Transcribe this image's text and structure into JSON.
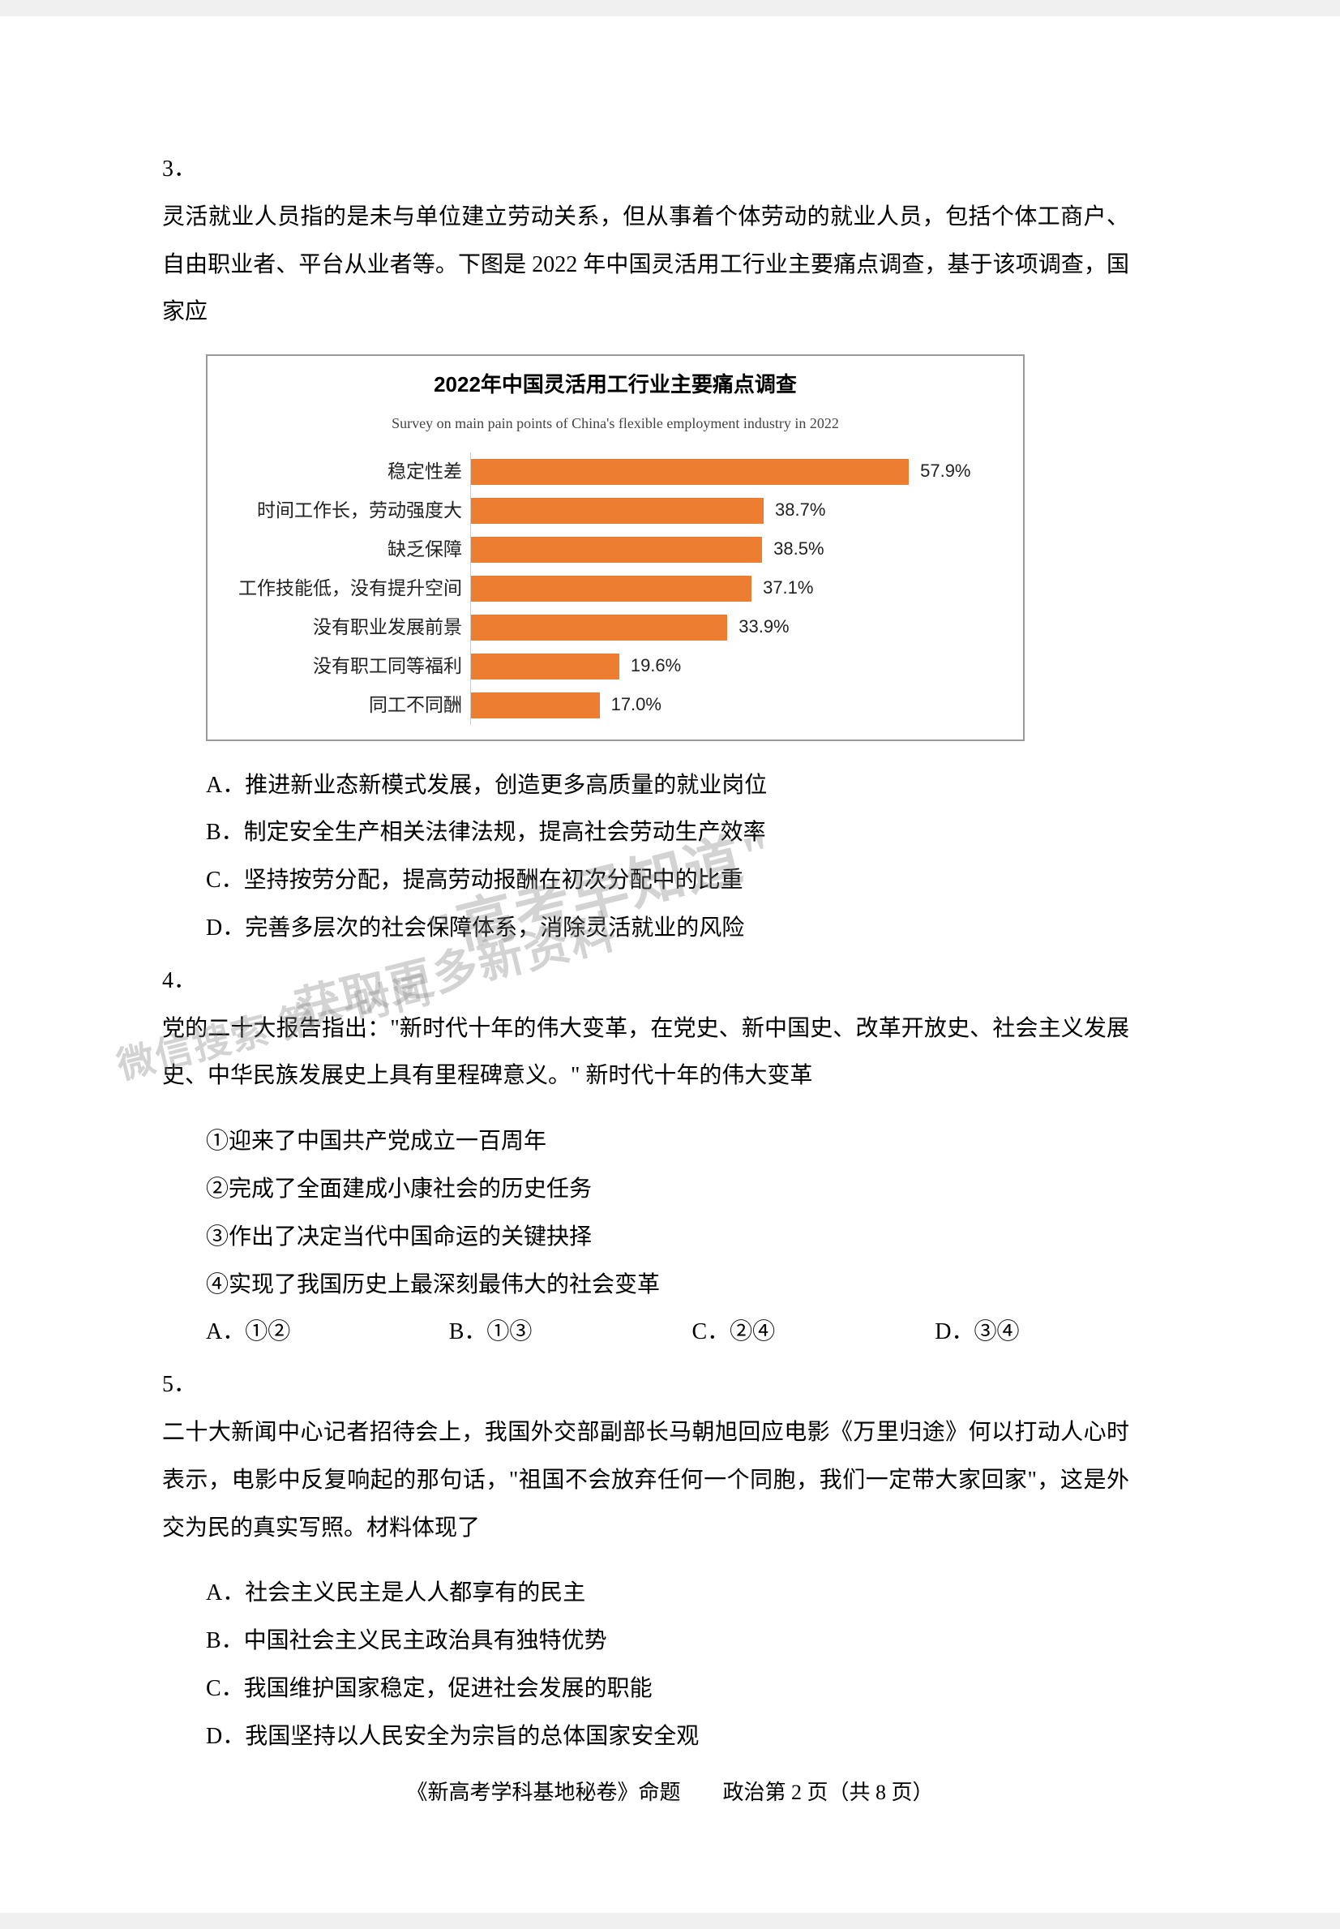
{
  "q3": {
    "number": "3．",
    "text": "灵活就业人员指的是未与单位建立劳动关系，但从事着个体劳动的就业人员，包括个体工商户、自由职业者、平台从业者等。下图是 2022 年中国灵活用工行业主要痛点调查，基于该项调查，国家应",
    "options": {
      "A": "A．推进新业态新模式发展，创造更多高质量的就业岗位",
      "B": "B．制定安全生产相关法律法规，提高社会劳动生产效率",
      "C": "C．坚持按劳分配，提高劳动报酬在初次分配中的比重",
      "D": "D．完善多层次的社会保障体系，消除灵活就业的风险"
    }
  },
  "chart": {
    "title_main": "2022年中国灵活用工行业主要痛点调查",
    "title_sub": "Survey on main pain points of China's flexible employment industry in 2022",
    "bar_color": "#ed7d31",
    "max_pct": 70,
    "rows": [
      {
        "label": "稳定性差",
        "value": 57.9,
        "display": "57.9%"
      },
      {
        "label": "时间工作长，劳动强度大",
        "value": 38.7,
        "display": "38.7%"
      },
      {
        "label": "缺乏保障",
        "value": 38.5,
        "display": "38.5%"
      },
      {
        "label": "工作技能低，没有提升空间",
        "value": 37.1,
        "display": "37.1%"
      },
      {
        "label": "没有职业发展前景",
        "value": 33.9,
        "display": "33.9%"
      },
      {
        "label": "没有职工同等福利",
        "value": 19.6,
        "display": "19.6%"
      },
      {
        "label": "同工不同酬",
        "value": 17.0,
        "display": "17.0%"
      }
    ]
  },
  "q4": {
    "number": "4．",
    "text": "党的二十大报告指出：\"新时代十年的伟大变革，在党史、新中国史、改革开放史、社会主义发展史、中华民族发展史上具有里程碑意义。\" 新时代十年的伟大变革",
    "items": {
      "i1": "①迎来了中国共产党成立一百周年",
      "i2": "②完成了全面建成小康社会的历史任务",
      "i3": "③作出了决定当代中国命运的关键抉择",
      "i4": "④实现了我国历史上最深刻最伟大的社会变革"
    },
    "options": {
      "A": "A．①②",
      "B": "B．①③",
      "C": "C．②④",
      "D": "D．③④"
    }
  },
  "q5": {
    "number": "5．",
    "text": "二十大新闻中心记者招待会上，我国外交部副部长马朝旭回应电影《万里归途》何以打动人心时表示，电影中反复响起的那句话，\"祖国不会放弃任何一个同胞，我们一定带大家回家\"，这是外交为民的真实写照。材料体现了",
    "options": {
      "A": "A．社会主义民主是人人都享有的民主",
      "B": "B．中国社会主义民主政治具有独特优势",
      "C": "C．我国维护国家稳定，促进社会发展的职能",
      "D": "D．我国坚持以人民安全为宗旨的总体国家安全观"
    }
  },
  "watermark": {
    "w1": "\"高考早知道\"",
    "w2": "获取更多新资料",
    "w3": "微信搜索  第一时间"
  },
  "footer": "《新高考学科基地秘卷》命题　　政治第 2 页（共 8 页）"
}
